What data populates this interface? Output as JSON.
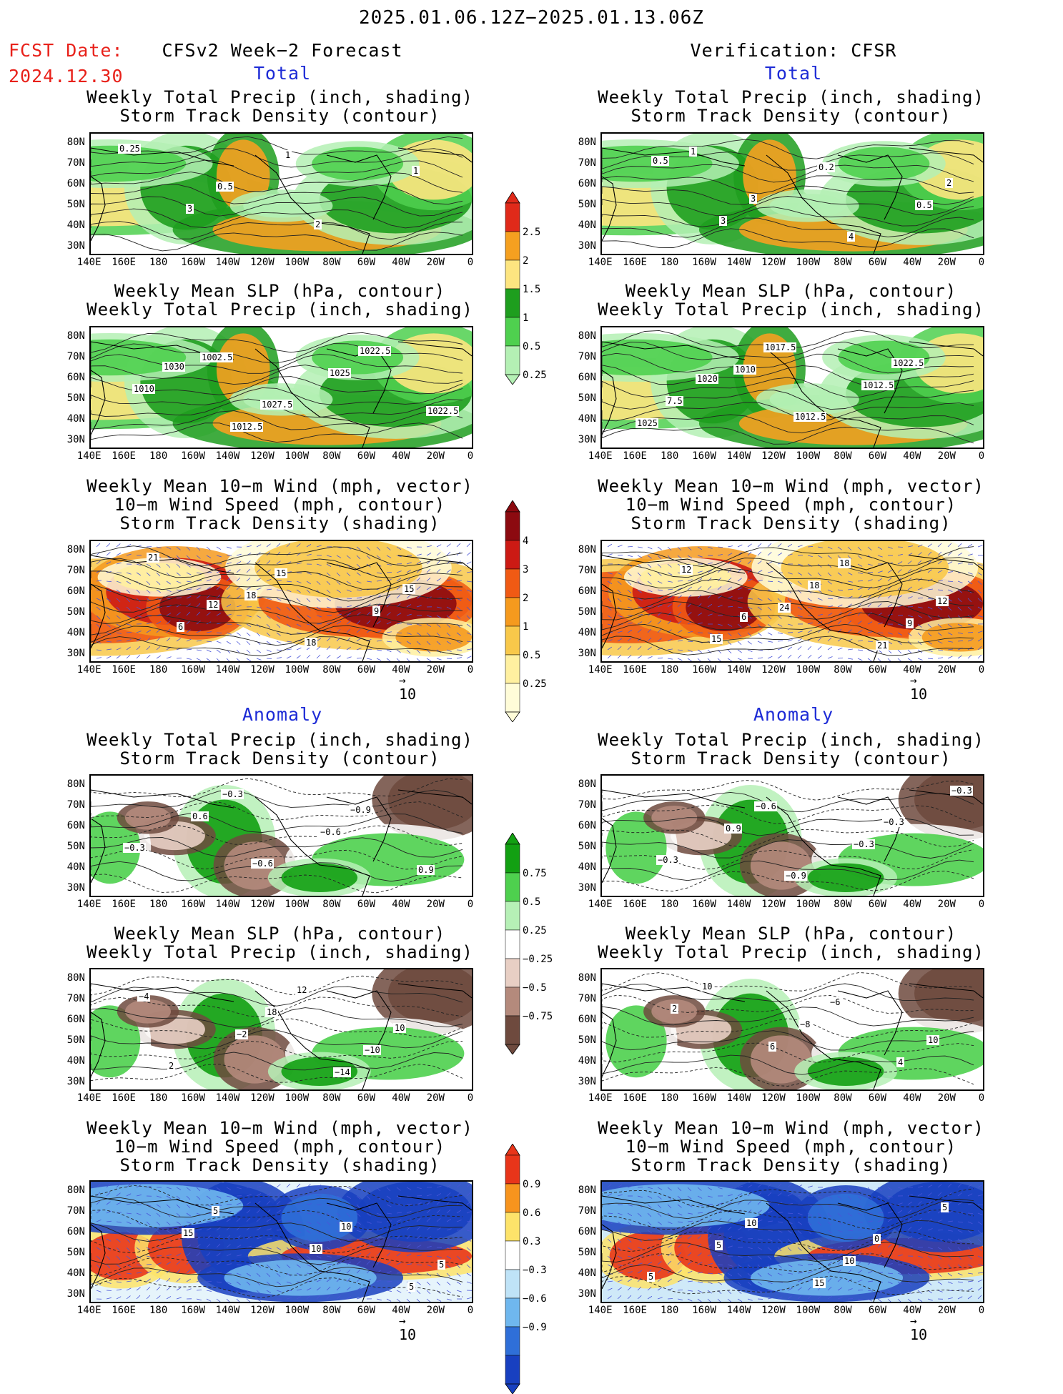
{
  "header": {
    "date_range": "2025.01.06.12Z−2025.01.13.06Z",
    "fcst_label": "FCST Date:",
    "fcst_date": "2024.12.30",
    "left_title": "CFSv2 Week−2 Forecast",
    "right_title": "Verification: CFSR",
    "section_total": "Total",
    "section_anomaly": "Anomaly"
  },
  "panel_titles": {
    "precip_storm": [
      "Weekly Total Precip (inch, shading)",
      "Storm Track Density (contour)"
    ],
    "slp_precip": [
      "Weekly Mean SLP (hPa, contour)",
      "Weekly Total Precip (inch, shading)"
    ],
    "wind_storm": [
      "Weekly Mean 10−m Wind (mph, vector)",
      "10−m Wind Speed (mph, contour)",
      "Storm Track Density (shading)"
    ]
  },
  "axes": {
    "lat_labels": [
      "80N",
      "70N",
      "60N",
      "50N",
      "40N",
      "30N"
    ],
    "lon_labels": [
      "140E",
      "160E",
      "180",
      "160W",
      "140W",
      "120W",
      "100W",
      "80W",
      "60W",
      "40W",
      "20W",
      "0"
    ]
  },
  "vector_scale": "10",
  "colorbars": {
    "precip_total": {
      "labels": [
        "2.5",
        "2",
        "1.5",
        "1",
        "0.5",
        "0.25"
      ],
      "colors": [
        "#e02a1a",
        "#f5a020",
        "#fde580",
        "#1e9e1e",
        "#4fd04f",
        "#b4f0b4"
      ]
    },
    "storm_total": {
      "labels": [
        "4",
        "3",
        "2",
        "1",
        "0.5",
        "0.25"
      ],
      "colors": [
        "#8c0a10",
        "#cc1a14",
        "#f05a14",
        "#f59a1e",
        "#f8c84a",
        "#fff0a0",
        "#fffcd8"
      ]
    },
    "precip_anom": {
      "labels": [
        "0.75",
        "0.5",
        "0.25",
        "−0.25",
        "−0.5",
        "−0.75"
      ],
      "colors": [
        "#12a012",
        "#4ed04e",
        "#b6f0b6",
        "#ffffff",
        "#e8cfc4",
        "#b48a7c",
        "#6e4a3e"
      ]
    },
    "storm_anom": {
      "labels": [
        "0.9",
        "0.6",
        "0.3",
        "−0.3",
        "−0.6",
        "−0.9"
      ],
      "colors": [
        "#e8351a",
        "#f7941e",
        "#fde36a",
        "#ffffff",
        "#bfe3f7",
        "#6fb7ee",
        "#2f6fd8",
        "#1840c0"
      ]
    }
  },
  "contour_labels": {
    "fcst_total_precip": [
      "0.25",
      "0.5",
      "2",
      "1",
      "3",
      "1"
    ],
    "verif_total_precip": [
      "0.5",
      "3",
      "4",
      "2",
      "3",
      "0.2",
      "0.5",
      "1"
    ],
    "fcst_total_slp": [
      "1030",
      "1027.5",
      "1022.5",
      "1010",
      "1012.5",
      "1025",
      "1022.5",
      "1002.5"
    ],
    "verif_total_slp": [
      "1020",
      "1012.5",
      "1022.5",
      "7.5",
      "1017.5",
      "1012.5",
      "1025",
      "1010"
    ],
    "fcst_total_wind": [
      "12",
      "18",
      "15",
      "6",
      "15",
      "9",
      "21",
      "18"
    ],
    "verif_total_wind": [
      "6",
      "18",
      "12",
      "15",
      "18",
      "9",
      "12",
      "24",
      "21"
    ],
    "fcst_anom_precip": [
      "−0.6",
      "−0.9",
      "−0.3",
      "−0.3",
      "−0.6",
      "0.9",
      "0.6"
    ],
    "verif_anom_precip": [
      "−0.9",
      "−0.3",
      "−0.3",
      "−0.6",
      "−0.3",
      "−0.3",
      "0.9"
    ],
    "fcst_anom_slp": [
      "12",
      "10",
      "2",
      "18",
      "−10",
      "−4",
      "−2",
      "−14"
    ],
    "verif_anom_slp": [
      "−6",
      "10",
      "10",
      "−8",
      "4",
      "2",
      "6"
    ],
    "fcst_anom_wind": [
      "10",
      "5",
      "5",
      "10",
      "5",
      "15"
    ],
    "verif_anom_wind": [
      "0",
      "5",
      "10",
      "10",
      "5",
      "5",
      "15"
    ]
  }
}
